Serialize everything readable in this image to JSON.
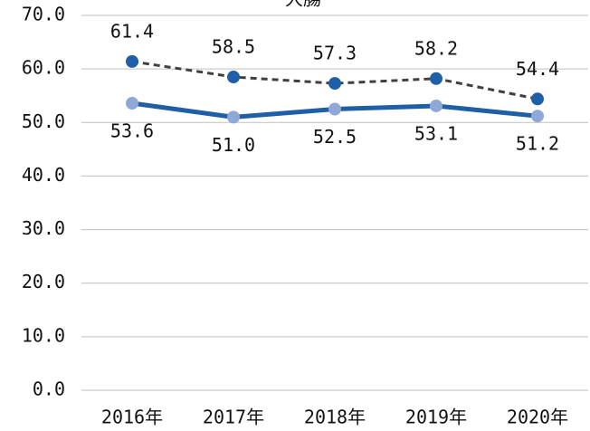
{
  "chart_data": {
    "type": "line",
    "title": "大腸",
    "categories": [
      "2016年",
      "2017年",
      "2018年",
      "2019年",
      "2020年"
    ],
    "series": [
      {
        "color": "#404040",
        "marker_color": "#1f5fa8",
        "dash": true,
        "label_position": "above",
        "values": [
          61.4,
          58.5,
          57.3,
          58.2,
          54.4
        ],
        "value_labels": [
          "61.4",
          "58.5",
          "57.3",
          "58.2",
          "54.4"
        ]
      },
      {
        "color": "#1f5fa8",
        "marker_color": "#8fa8d8",
        "dash": false,
        "label_position": "below",
        "values": [
          53.6,
          51.0,
          52.5,
          53.1,
          51.2
        ],
        "value_labels": [
          "53.6",
          "51.0",
          "52.5",
          "53.1",
          "51.2"
        ]
      }
    ],
    "ylim": [
      0,
      70
    ],
    "yticks": [
      {
        "value": 0,
        "label": "0.0"
      },
      {
        "value": 10,
        "label": "10.0"
      },
      {
        "value": 20,
        "label": "20.0"
      },
      {
        "value": 30,
        "label": "30.0"
      },
      {
        "value": 40,
        "label": "40.0"
      },
      {
        "value": 50,
        "label": "50.0"
      },
      {
        "value": 60,
        "label": "60.0"
      },
      {
        "value": 70,
        "label": "70.0"
      }
    ],
    "grid": true
  }
}
